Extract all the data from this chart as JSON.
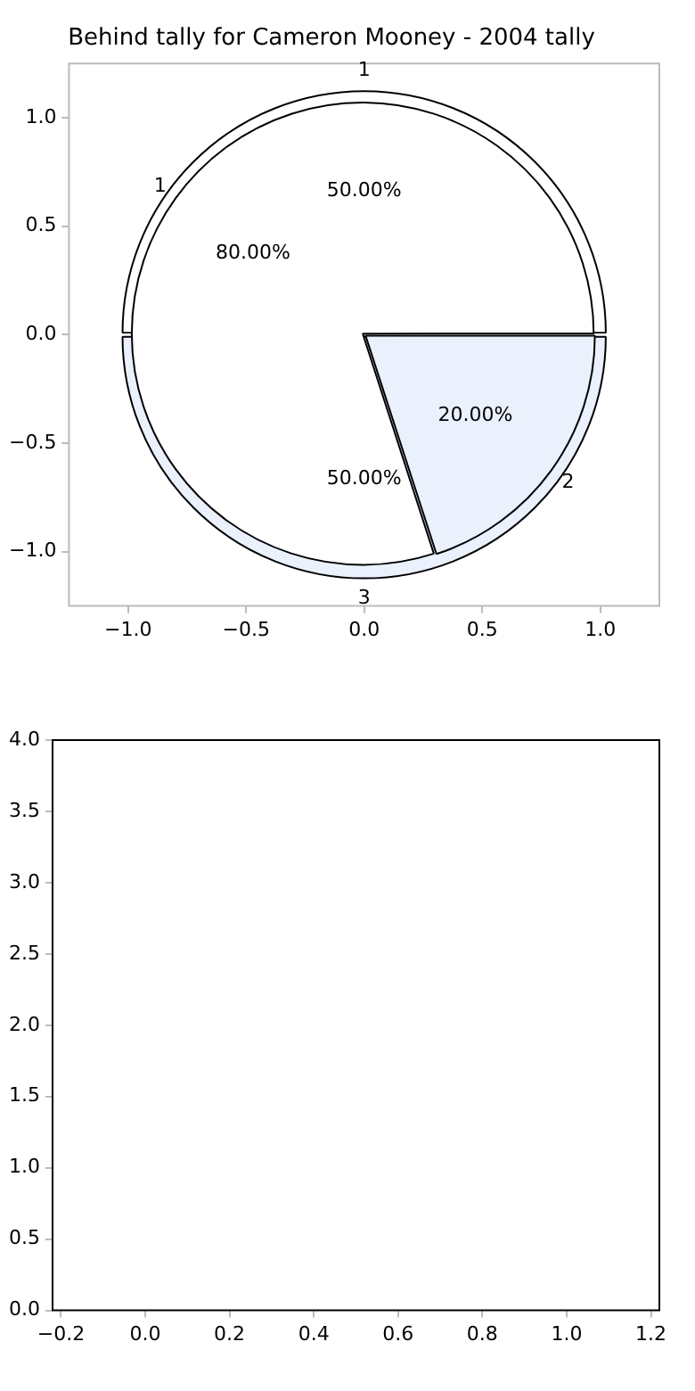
{
  "chart_data": [
    {
      "type": "scatter",
      "title": "Behind tally for Cameron Mooney - 2004 tally",
      "xlim": [
        -1.25,
        1.25
      ],
      "ylim": [
        -1.25,
        1.25
      ],
      "xticks": [
        {
          "value": -1,
          "label": "−1.0"
        },
        {
          "value": -0.5,
          "label": "−0.5"
        },
        {
          "value": 0,
          "label": "0.0"
        },
        {
          "value": 0.5,
          "label": "0.5"
        },
        {
          "value": 1,
          "label": "1.0"
        }
      ],
      "yticks": [
        {
          "value": -1,
          "label": "−1.0"
        },
        {
          "value": -0.5,
          "label": "−0.5"
        },
        {
          "value": 0,
          "label": "0.0"
        },
        {
          "value": 0.5,
          "label": "0.5"
        },
        {
          "value": 1,
          "label": "1.0"
        }
      ]
    },
    {
      "type": "pie",
      "categories": [
        "1",
        "3"
      ],
      "values": [
        50,
        50
      ],
      "colors": [
        "#ffffff",
        "#eaf0fc"
      ],
      "value_labels": [
        "50.00%",
        "50.00%"
      ]
    },
    {
      "type": "pie",
      "categories": [
        "1",
        "2"
      ],
      "values": [
        80,
        20
      ],
      "colors": [
        "#ffffff",
        "#eaf0fc"
      ],
      "value_labels": [
        "80.00%",
        "20.00%"
      ]
    },
    {
      "type": "scatter",
      "xlim": [
        -0.22,
        1.22
      ],
      "ylim": [
        0,
        4
      ],
      "grid": false,
      "xticks": [
        {
          "value": -0.2,
          "label": "−0.2"
        },
        {
          "value": 0,
          "label": "0.0"
        },
        {
          "value": 0.2,
          "label": "0.2"
        },
        {
          "value": 0.4,
          "label": "0.4"
        },
        {
          "value": 0.6,
          "label": "0.6"
        },
        {
          "value": 0.8,
          "label": "0.8"
        },
        {
          "value": 1,
          "label": "1.0"
        },
        {
          "value": 1.2,
          "label": "1.2"
        }
      ],
      "yticks": [
        {
          "value": 0,
          "label": "0.0"
        },
        {
          "value": 0.5,
          "label": "0.5"
        },
        {
          "value": 1,
          "label": "1.0"
        },
        {
          "value": 1.5,
          "label": "1.5"
        },
        {
          "value": 2,
          "label": "2.0"
        },
        {
          "value": 2.5,
          "label": "2.5"
        },
        {
          "value": 3,
          "label": "3.0"
        },
        {
          "value": 3.5,
          "label": "3.5"
        },
        {
          "value": 4,
          "label": "4.0"
        }
      ]
    }
  ]
}
